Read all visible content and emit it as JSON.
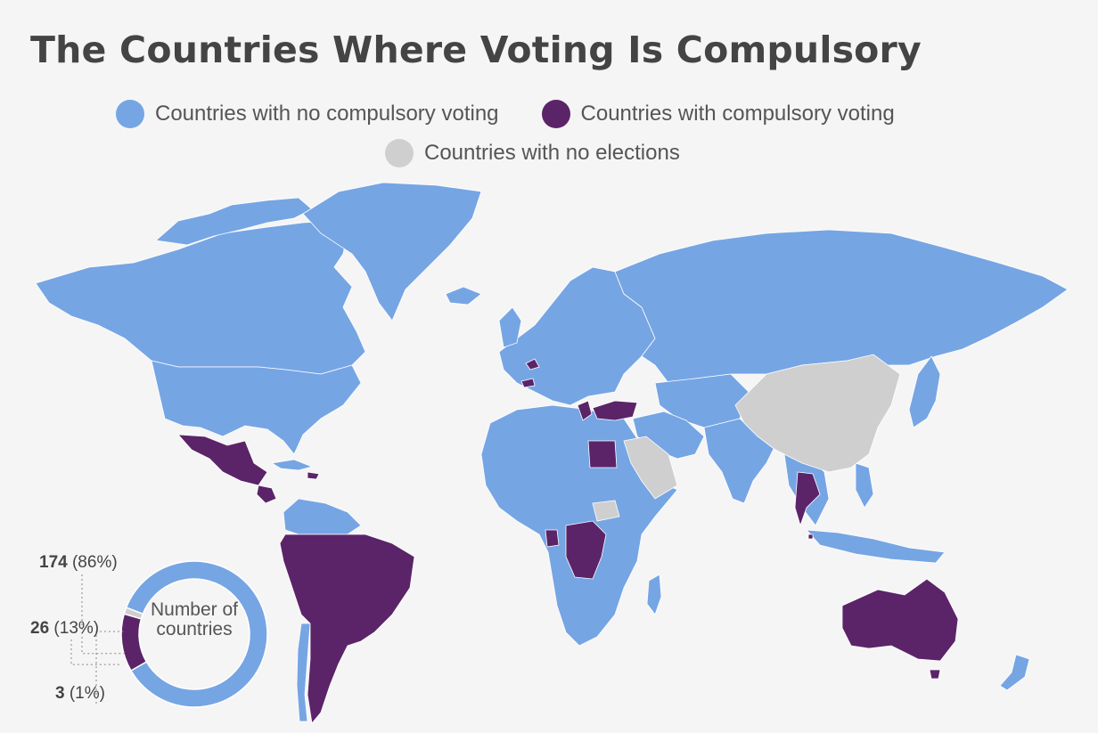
{
  "title": "The Countries Where Voting Is Compulsory",
  "legend": [
    {
      "label": "Countries with no compulsory voting",
      "color": "#76a5e4"
    },
    {
      "label": "Countries with compulsory voting",
      "color": "#5b2468"
    },
    {
      "label": "Countries with no elections",
      "color": "#cfcfcf"
    }
  ],
  "map": {
    "regions": {
      "no_compulsory": [
        "Canada",
        "Greenland",
        "United States",
        "Europe",
        "Russia",
        "Africa",
        "India",
        "Central Asia",
        "Japan",
        "Indonesia",
        "New Zealand"
      ],
      "compulsory": [
        "Mexico",
        "Brazil",
        "Argentina",
        "Peru",
        "Bolivia",
        "Australia",
        "Thailand",
        "Turkey",
        "Egypt",
        "DR Congo",
        "Belgium",
        "Luxembourg"
      ],
      "no_elections": [
        "China",
        "Saudi Arabia",
        "South Sudan"
      ]
    }
  },
  "chart_data": {
    "type": "pie",
    "center_label": "Number of countries",
    "slices": [
      {
        "category": "Countries with no compulsory voting",
        "count": 174,
        "percent": "86%",
        "color": "#76a5e4"
      },
      {
        "category": "Countries with compulsory voting",
        "count": 26,
        "percent": "13%",
        "color": "#5b2468"
      },
      {
        "category": "Countries with no elections",
        "count": 3,
        "percent": "1%",
        "color": "#cfcfcf"
      }
    ],
    "labels": [
      {
        "value": "174",
        "pct": "(86%)"
      },
      {
        "value": "26",
        "pct": "(13%)"
      },
      {
        "value": "3",
        "pct": "(1%)"
      }
    ]
  }
}
